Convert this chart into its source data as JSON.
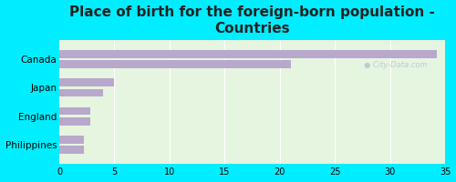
{
  "title": "Place of birth for the foreign-born population -\nCountries",
  "categories": [
    "Canada",
    "Japan",
    "England",
    "Philippines"
  ],
  "values1": [
    34.2,
    5.0,
    2.8,
    2.2
  ],
  "values2": [
    21.0,
    4.0,
    2.8,
    2.2
  ],
  "bar_color": "#b8a8cc",
  "background_color": "#00eeff",
  "plot_bg_color": "#e6f5e0",
  "xlim": [
    0,
    35
  ],
  "xticks": [
    0,
    5,
    10,
    15,
    20,
    25,
    30,
    35
  ],
  "watermark": "City-Data.com",
  "title_fontsize": 11,
  "bar_height": 0.28,
  "bar_gap": 0.08
}
